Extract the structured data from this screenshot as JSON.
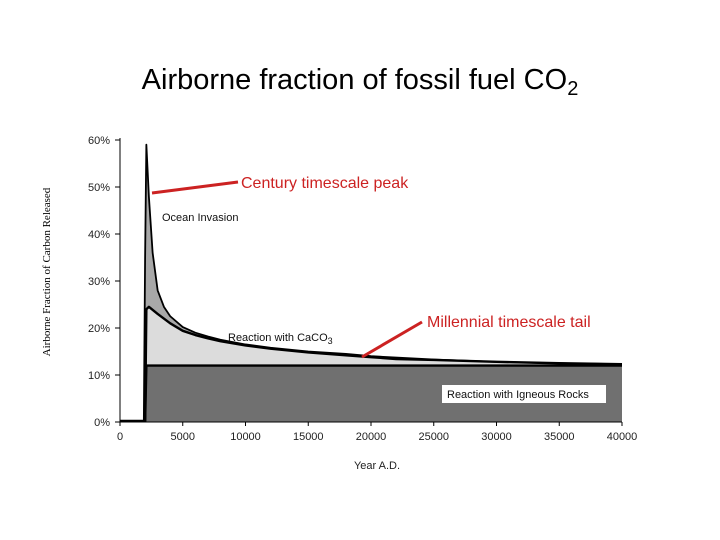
{
  "slide": {
    "title_main": "Airborne fraction of fossil fuel CO",
    "title_sub": "2"
  },
  "chart_data": {
    "type": "area",
    "title": "Airborne fraction of fossil fuel CO2",
    "xlabel": "Year A.D.",
    "ylabel": "Airborne Fraction of Carbon Released",
    "x_ticks": [
      "0",
      "5000",
      "10000",
      "15000",
      "20000",
      "25000",
      "30000",
      "35000",
      "40000"
    ],
    "y_ticks": [
      "0%",
      "10%",
      "20%",
      "30%",
      "40%",
      "50%",
      "60%"
    ],
    "xlim": [
      0,
      40000
    ],
    "ylim": [
      0,
      60
    ],
    "grid": false,
    "series": [
      {
        "name": "Ocean Invasion",
        "color": "#a8a8a8",
        "x": [
          0,
          1900,
          2000,
          2100,
          2300,
          2600,
          3000,
          3500,
          4000,
          5000,
          6000,
          7000,
          8000,
          10000,
          12000,
          15000,
          18000,
          20000,
          25000,
          30000,
          35000,
          40000
        ],
        "y": [
          0.3,
          0.3,
          35,
          59,
          48,
          36,
          28,
          24.5,
          22.5,
          20.2,
          19,
          18.2,
          17.5,
          16.5,
          15.8,
          15,
          14.5,
          14,
          13.3,
          12.8,
          12.5,
          12.3
        ]
      },
      {
        "name": "Reaction with CaCO3",
        "color": "#dcdcdc",
        "x": [
          2000,
          2100,
          2300,
          3000,
          4000,
          5000,
          6000,
          7000,
          8000,
          10000,
          12000,
          15000,
          18000,
          20000,
          22000,
          25000,
          30000,
          35000,
          40000
        ],
        "y": [
          0,
          24,
          24.5,
          23,
          21,
          19.4,
          18.5,
          17.8,
          17.2,
          16.3,
          15.6,
          14.8,
          14.2,
          13.8,
          13.4,
          13.2,
          12.8,
          12.5,
          12.3
        ]
      },
      {
        "name": "Reaction with Igneous Rocks",
        "color": "#707070",
        "x": [
          2000,
          2100,
          40000
        ],
        "y": [
          0,
          12,
          12
        ]
      }
    ],
    "annotations": [
      {
        "text": "Ocean Invasion"
      },
      {
        "text": "Reaction with CaCO",
        "sub": "3"
      },
      {
        "text": "Reaction with Igneous Rocks"
      },
      {
        "text": "Century timescale peak",
        "color": "#cc2222"
      },
      {
        "text": "Millennial timescale tail",
        "color": "#cc2222"
      }
    ]
  }
}
